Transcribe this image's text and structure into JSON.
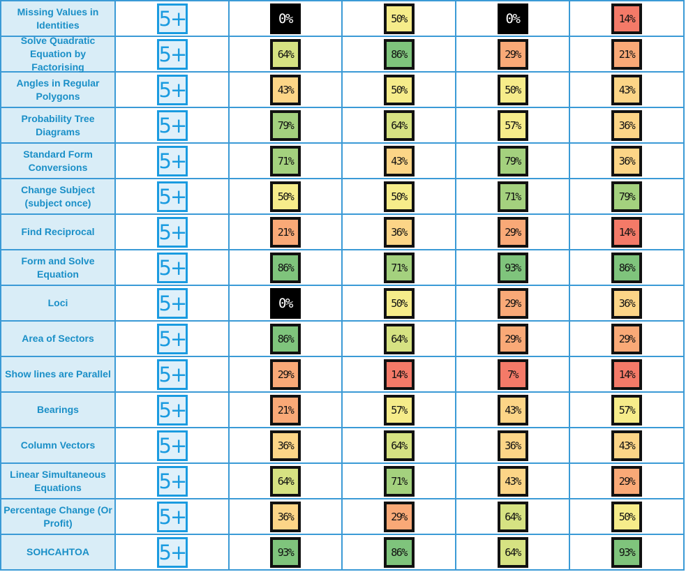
{
  "colors": {
    "zero": "#000000",
    "very_low": "#f47a68",
    "low": "#f9a977",
    "mid_low": "#fcd587",
    "mid": "#f6ec8a",
    "mid_high": "#d6e282",
    "high": "#a4d17e",
    "very_high": "#7fc47c",
    "border": "#3a9ad6",
    "topic_bg": "#d9edf7",
    "topic_text": "#1a8fc7"
  },
  "rows": [
    {
      "topic": "Missing Values in Identities",
      "grade": "5+",
      "scores": [
        "0%",
        "50%",
        "0%",
        "14%"
      ]
    },
    {
      "topic": "Solve Quadratic Equation by Factorising",
      "grade": "5+",
      "scores": [
        "64%",
        "86%",
        "29%",
        "21%"
      ]
    },
    {
      "topic": "Angles in Regular Polygons",
      "grade": "5+",
      "scores": [
        "43%",
        "50%",
        "50%",
        "43%"
      ]
    },
    {
      "topic": "Probability Tree Diagrams",
      "grade": "5+",
      "scores": [
        "79%",
        "64%",
        "57%",
        "36%"
      ]
    },
    {
      "topic": "Standard Form Conversions",
      "grade": "5+",
      "scores": [
        "71%",
        "43%",
        "79%",
        "36%"
      ]
    },
    {
      "topic": "Change Subject (subject once)",
      "grade": "5+",
      "scores": [
        "50%",
        "50%",
        "71%",
        "79%"
      ]
    },
    {
      "topic": "Find Reciprocal",
      "grade": "5+",
      "scores": [
        "21%",
        "36%",
        "29%",
        "14%"
      ]
    },
    {
      "topic": "Form and Solve Equation",
      "grade": "5+",
      "scores": [
        "86%",
        "71%",
        "93%",
        "86%"
      ]
    },
    {
      "topic": "Loci",
      "grade": "5+",
      "scores": [
        "0%",
        "50%",
        "29%",
        "36%"
      ]
    },
    {
      "topic": "Area of Sectors",
      "grade": "5+",
      "scores": [
        "86%",
        "64%",
        "29%",
        "29%"
      ]
    },
    {
      "topic": "Show lines are Parallel",
      "grade": "5+",
      "scores": [
        "29%",
        "14%",
        "7%",
        "14%"
      ]
    },
    {
      "topic": "Bearings",
      "grade": "5+",
      "scores": [
        "21%",
        "57%",
        "43%",
        "57%"
      ]
    },
    {
      "topic": "Column Vectors",
      "grade": "5+",
      "scores": [
        "36%",
        "64%",
        "36%",
        "43%"
      ]
    },
    {
      "topic": "Linear Simultaneous Equations",
      "grade": "5+",
      "scores": [
        "64%",
        "71%",
        "43%",
        "29%"
      ]
    },
    {
      "topic": "Percentage Change (Or Profit)",
      "grade": "5+",
      "scores": [
        "36%",
        "29%",
        "64%",
        "50%"
      ]
    },
    {
      "topic": "SOHCAHTOA",
      "grade": "5+",
      "scores": [
        "93%",
        "86%",
        "64%",
        "93%"
      ]
    }
  ]
}
